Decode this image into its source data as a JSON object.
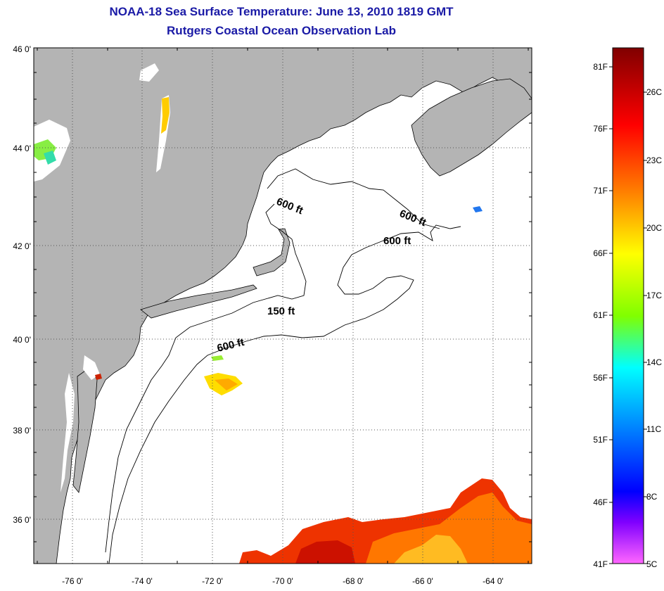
{
  "header": {
    "title": "NOAA-18 Sea Surface Temperature:  June 13, 2010 1819 GMT",
    "subtitle": "Rutgers Coastal Ocean Observation Lab"
  },
  "map": {
    "lat_labels": [
      "46 0'",
      "44 0'",
      "42 0'",
      "40 0'",
      "38 0'",
      "36 0'"
    ],
    "lon_labels": [
      "-76 0'",
      "-74 0'",
      "-72 0'",
      "-70 0'",
      "-68 0'",
      "-66 0'",
      "-64 0'"
    ],
    "contour_labels": [
      "600 ft",
      "600 ft",
      "600 ft",
      "150 ft",
      "600 ft"
    ],
    "colors": {
      "land": "#b4b4b4",
      "ocean": "#ffffff",
      "grid": "#555555"
    }
  },
  "colorbar": {
    "fahrenheit": [
      "81F",
      "76F",
      "71F",
      "66F",
      "61F",
      "56F",
      "51F",
      "46F",
      "41F"
    ],
    "celsius": [
      "26C",
      "23C",
      "20C",
      "17C",
      "14C",
      "11C",
      "8C",
      "5C"
    ],
    "stops": [
      "#800000",
      "#ff0000",
      "#ff8000",
      "#ffff00",
      "#80ff00",
      "#00ffff",
      "#0080ff",
      "#0000ff",
      "#8000ff",
      "#ff66ff"
    ]
  }
}
